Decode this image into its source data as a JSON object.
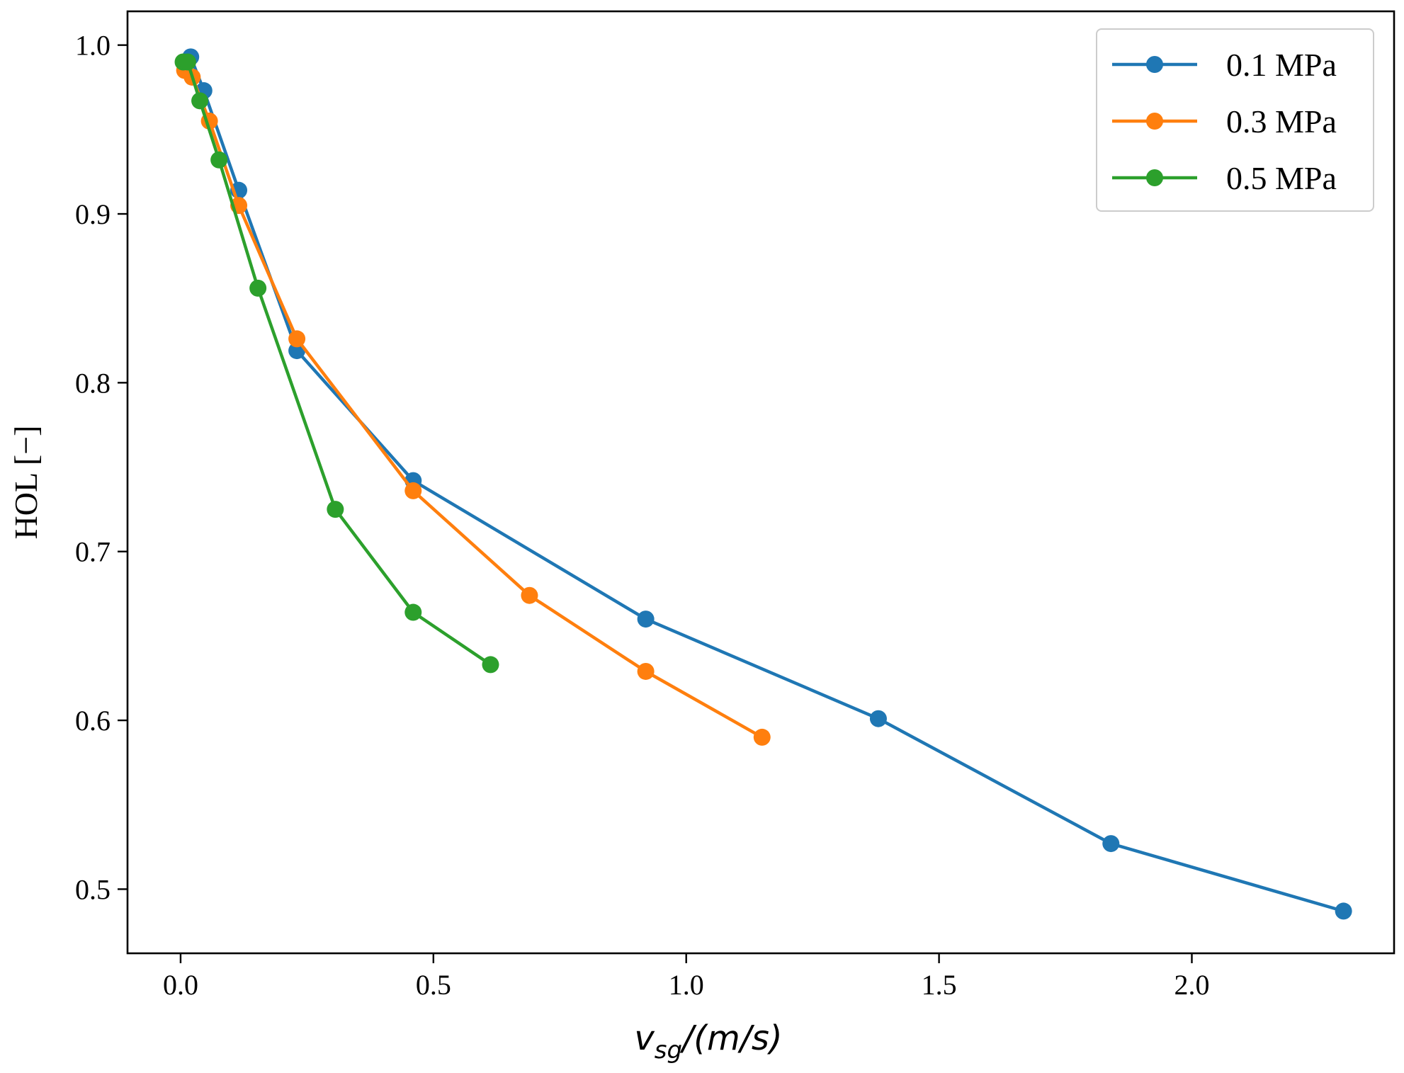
{
  "chart_data": {
    "type": "line",
    "title": "",
    "xlabel": {
      "main": "v",
      "subscript": "sg",
      "suffix": "/(m/s)"
    },
    "ylabel": "HOL [−]",
    "xlim": [
      -0.105,
      2.4
    ],
    "ylim": [
      0.462,
      1.02
    ],
    "xticks": [
      0.0,
      0.5,
      1.0,
      1.5,
      2.0
    ],
    "xtick_labels": [
      "0.0",
      "0.5",
      "1.0",
      "1.5",
      "2.0"
    ],
    "yticks": [
      0.5,
      0.6,
      0.7,
      0.8,
      0.9,
      1.0
    ],
    "ytick_labels": [
      "0.5",
      "0.6",
      "0.7",
      "0.8",
      "0.9",
      "1.0"
    ],
    "grid": false,
    "legend_position": "top-right",
    "series": [
      {
        "name": "0.1 MPa",
        "color": "#1f77b4",
        "x": [
          0.02,
          0.046,
          0.115,
          0.23,
          0.46,
          0.92,
          1.38,
          1.84,
          2.3
        ],
        "y": [
          0.993,
          0.973,
          0.914,
          0.819,
          0.742,
          0.66,
          0.601,
          0.527,
          0.487
        ]
      },
      {
        "name": "0.3 MPa",
        "color": "#ff7f0e",
        "x": [
          0.008,
          0.023,
          0.057,
          0.115,
          0.23,
          0.46,
          0.69,
          0.92,
          1.15
        ],
        "y": [
          0.985,
          0.981,
          0.955,
          0.905,
          0.826,
          0.736,
          0.674,
          0.629,
          0.59
        ]
      },
      {
        "name": "0.5 MPa",
        "color": "#2ca02c",
        "x": [
          0.005,
          0.014,
          0.038,
          0.076,
          0.153,
          0.306,
          0.46,
          0.613
        ],
        "y": [
          0.99,
          0.99,
          0.967,
          0.932,
          0.856,
          0.725,
          0.664,
          0.633
        ]
      }
    ]
  }
}
